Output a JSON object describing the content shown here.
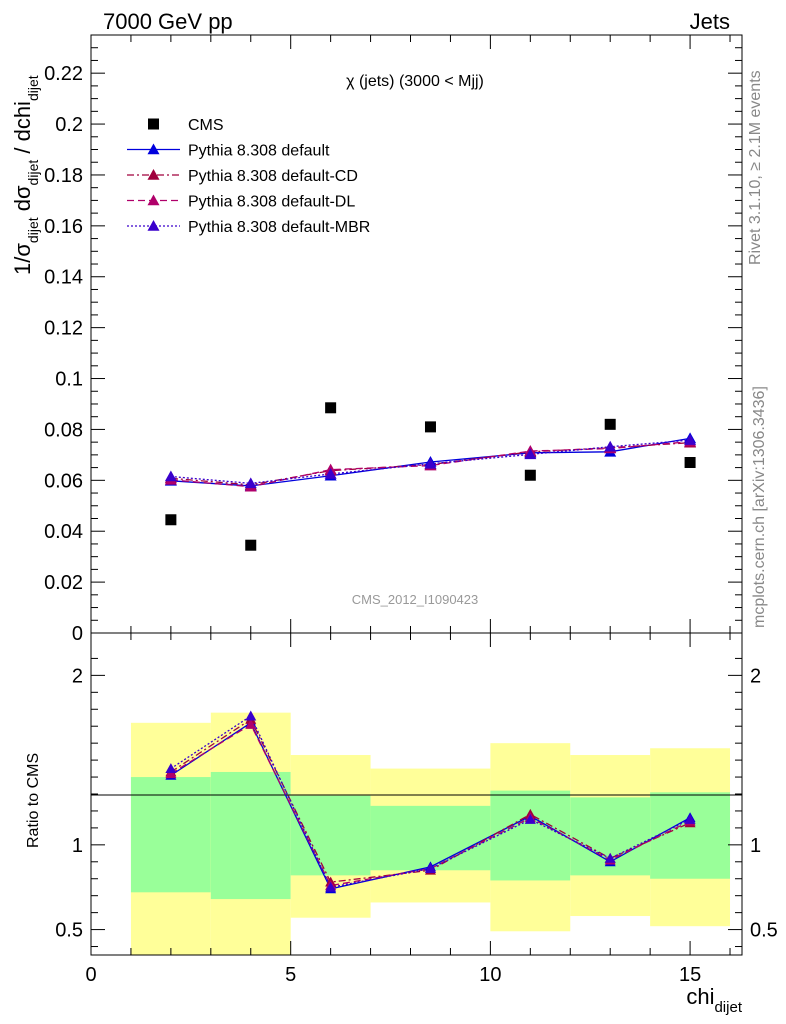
{
  "header": {
    "left": "7000 GeV pp",
    "right": "Jets"
  },
  "side_texts": {
    "rivet": "Rivet 3.1.10, ≥ 2.1M events",
    "mcplots": "mcplots.cern.ch [arXiv:1306.3436]"
  },
  "watermark": "CMS_2012_I1090423",
  "chart_data": [
    {
      "type": "scatter",
      "title": "χ (jets) (3000 < Mjj)",
      "ylabel": {
        "main": "1/σ",
        "sub1": "dijet",
        "mid": " dσ",
        "sub2": "dijet",
        "tail": " / dchi",
        "sub3": "dijet"
      },
      "xlim": [
        0,
        16.3
      ],
      "ylim": [
        0,
        0.235
      ],
      "yticks": [
        "0",
        "0.02",
        "0.04",
        "0.06",
        "0.08",
        "0.1",
        "0.12",
        "0.14",
        "0.16",
        "0.18",
        "0.2",
        "0.22"
      ],
      "legend_position": "top-left",
      "series": [
        {
          "name": "CMS",
          "color": "#000000",
          "marker": "square",
          "line": "none",
          "x": [
            2,
            4,
            6,
            8.5,
            11,
            13,
            15
          ],
          "values": [
            0.0445,
            0.0345,
            0.0885,
            0.081,
            0.062,
            0.082,
            0.067
          ]
        },
        {
          "name": "Pythia 8.308 default",
          "color": "#0000dd",
          "marker": "triangle",
          "line": "solid",
          "x": [
            2,
            4,
            6,
            8.5,
            11,
            13,
            15
          ],
          "values": [
            0.0598,
            0.0578,
            0.0618,
            0.0672,
            0.0708,
            0.0712,
            0.0765
          ]
        },
        {
          "name": "Pythia 8.308 default-CD",
          "color": "#a0003c",
          "marker": "triangle",
          "line": "dashdot",
          "x": [
            2,
            4,
            6,
            8.5,
            11,
            13,
            15
          ],
          "values": [
            0.0608,
            0.0582,
            0.0638,
            0.0662,
            0.0712,
            0.0728,
            0.0748
          ]
        },
        {
          "name": "Pythia 8.308 default-DL",
          "color": "#b0006a",
          "marker": "triangle",
          "line": "dashed",
          "x": [
            2,
            4,
            6,
            8.5,
            11,
            13,
            15
          ],
          "values": [
            0.0602,
            0.0575,
            0.0642,
            0.0658,
            0.0715,
            0.0725,
            0.0752
          ]
        },
        {
          "name": "Pythia 8.308 default-MBR",
          "color": "#3a00cc",
          "marker": "triangle",
          "line": "dotted",
          "x": [
            2,
            4,
            6,
            8.5,
            11,
            13,
            15
          ],
          "values": [
            0.0615,
            0.0588,
            0.0625,
            0.0665,
            0.0702,
            0.0732,
            0.0758
          ]
        }
      ]
    },
    {
      "type": "line",
      "ylabel": "Ratio to CMS",
      "xlabel": {
        "main": "chi",
        "sub": "dijet"
      },
      "xlim": [
        0,
        16.3
      ],
      "ylim": [
        0.35,
        2.25
      ],
      "xticks": [
        "0",
        "5",
        "10",
        "15"
      ],
      "yticks": [
        "0.5",
        "1",
        "2"
      ],
      "reference_line": 1,
      "bands": {
        "inner_color": "#99ff99",
        "outer_color": "#ffff99",
        "bins": [
          {
            "x0": 1,
            "x1": 3,
            "inner": [
              0.72,
              1.4
            ],
            "outer": [
              0.0,
              1.72
            ]
          },
          {
            "x0": 3,
            "x1": 5,
            "inner": [
              0.68,
              1.43
            ],
            "outer": [
              0.0,
              1.78
            ]
          },
          {
            "x0": 5,
            "x1": 7,
            "inner": [
              0.82,
              1.29
            ],
            "outer": [
              0.57,
              1.53
            ]
          },
          {
            "x0": 7,
            "x1": 10,
            "inner": [
              0.85,
              1.23
            ],
            "outer": [
              0.66,
              1.45
            ]
          },
          {
            "x0": 10,
            "x1": 12,
            "inner": [
              0.79,
              1.32
            ],
            "outer": [
              0.49,
              1.6
            ]
          },
          {
            "x0": 12,
            "x1": 14,
            "inner": [
              0.82,
              1.28
            ],
            "outer": [
              0.58,
              1.53
            ]
          },
          {
            "x0": 14,
            "x1": 16,
            "inner": [
              0.8,
              1.31
            ],
            "outer": [
              0.52,
              1.57
            ]
          }
        ]
      },
      "series": [
        {
          "name": "Pythia 8.308 default",
          "color": "#0000dd",
          "line": "solid",
          "x": [
            2,
            4,
            6,
            8.5,
            11,
            13,
            15
          ],
          "values": [
            1.41,
            1.72,
            0.74,
            0.87,
            1.17,
            0.9,
            1.16
          ]
        },
        {
          "name": "Pythia 8.308 default-CD",
          "color": "#a0003c",
          "line": "dashdot",
          "x": [
            2,
            4,
            6,
            8.5,
            11,
            13,
            15
          ],
          "values": [
            1.43,
            1.74,
            0.78,
            0.85,
            1.18,
            0.92,
            1.13
          ]
        },
        {
          "name": "Pythia 8.308 default-DL",
          "color": "#b0006a",
          "line": "dashed",
          "x": [
            2,
            4,
            6,
            8.5,
            11,
            13,
            15
          ],
          "values": [
            1.42,
            1.71,
            0.76,
            0.86,
            1.16,
            0.91,
            1.14
          ]
        },
        {
          "name": "Pythia 8.308 default-MBR",
          "color": "#3a00cc",
          "line": "dotted",
          "x": [
            2,
            4,
            6,
            8.5,
            11,
            13,
            15
          ],
          "values": [
            1.45,
            1.76,
            0.75,
            0.86,
            1.15,
            0.92,
            1.15
          ]
        }
      ]
    }
  ]
}
